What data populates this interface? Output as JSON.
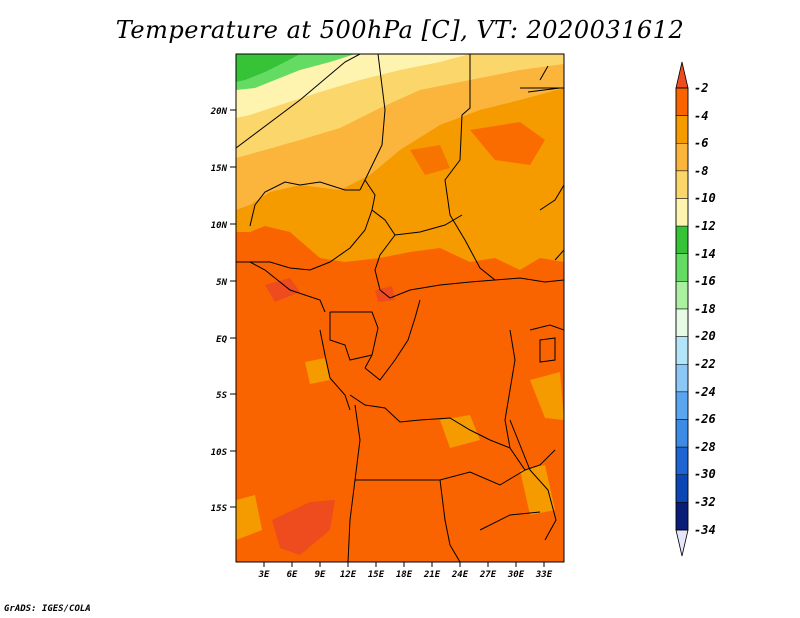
{
  "title": "Temperature at 500hPa [C], VT: 2020031612",
  "credit": "GrADS: IGES/COLA",
  "map": {
    "lat_ticks": [
      "20N",
      "15N",
      "10N",
      "5N",
      "EQ",
      "5S",
      "10S",
      "15S"
    ],
    "lon_ticks": [
      "3E",
      "6E",
      "9E",
      "12E",
      "15E",
      "18E",
      "21E",
      "24E",
      "27E",
      "30E",
      "33E"
    ]
  },
  "colorbar": {
    "labels": [
      "-2",
      "-4",
      "-6",
      "-8",
      "-10",
      "-12",
      "-14",
      "-16",
      "-18",
      "-20",
      "-22",
      "-24",
      "-26",
      "-28",
      "-30",
      "-32",
      "-34"
    ],
    "colors": [
      "#ee4b1f",
      "#fa6400",
      "#f59b00",
      "#fbb43c",
      "#fbd66a",
      "#fff3b0",
      "#37c337",
      "#64dc64",
      "#aaf0a0",
      "#e6fae6",
      "#b4e4f8",
      "#8cc8f5",
      "#5aa5f0",
      "#3c8ce6",
      "#1e64d2",
      "#0a46b4",
      "#0a1e78",
      "#e6e6fa"
    ]
  }
}
